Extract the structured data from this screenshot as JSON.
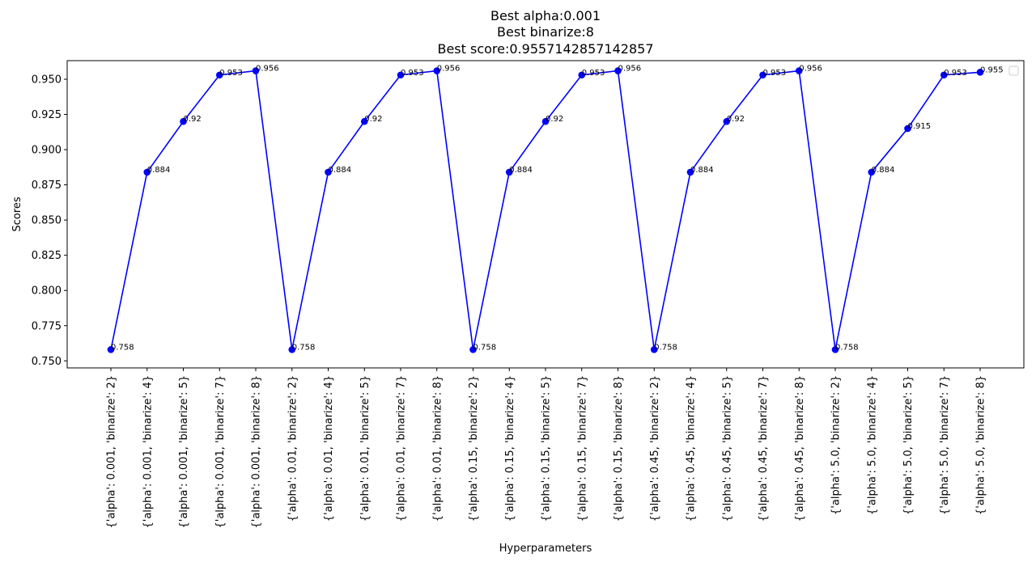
{
  "chart_data": {
    "type": "line",
    "title_lines": [
      "Best alpha:0.001",
      "Best binarize:8",
      "Best score:0.9557142857142857"
    ],
    "xlabel": "Hyperparameters",
    "ylabel": "Scores",
    "ylim": [
      0.745,
      0.9632
    ],
    "yticks": [
      0.75,
      0.775,
      0.8,
      0.825,
      0.85,
      0.875,
      0.9,
      0.925,
      0.95
    ],
    "ytick_labels": [
      "0.750",
      "0.775",
      "0.800",
      "0.825",
      "0.850",
      "0.875",
      "0.900",
      "0.925",
      "0.950"
    ],
    "grid": false,
    "legend": "top-right (empty)",
    "line_color": "#0000ff",
    "categories": [
      "{'alpha': 0.001, 'binarize': 2}",
      "{'alpha': 0.001, 'binarize': 4}",
      "{'alpha': 0.001, 'binarize': 5}",
      "{'alpha': 0.001, 'binarize': 7}",
      "{'alpha': 0.001, 'binarize': 8}",
      "{'alpha': 0.01, 'binarize': 2}",
      "{'alpha': 0.01, 'binarize': 4}",
      "{'alpha': 0.01, 'binarize': 5}",
      "{'alpha': 0.01, 'binarize': 7}",
      "{'alpha': 0.01, 'binarize': 8}",
      "{'alpha': 0.15, 'binarize': 2}",
      "{'alpha': 0.15, 'binarize': 4}",
      "{'alpha': 0.15, 'binarize': 5}",
      "{'alpha': 0.15, 'binarize': 7}",
      "{'alpha': 0.15, 'binarize': 8}",
      "{'alpha': 0.45, 'binarize': 2}",
      "{'alpha': 0.45, 'binarize': 4}",
      "{'alpha': 0.45, 'binarize': 5}",
      "{'alpha': 0.45, 'binarize': 7}",
      "{'alpha': 0.45, 'binarize': 8}",
      "{'alpha': 5.0, 'binarize': 2}",
      "{'alpha': 5.0, 'binarize': 4}",
      "{'alpha': 5.0, 'binarize': 5}",
      "{'alpha': 5.0, 'binarize': 7}",
      "{'alpha': 5.0, 'binarize': 8}"
    ],
    "values": [
      0.758,
      0.884,
      0.92,
      0.953,
      0.956,
      0.758,
      0.884,
      0.92,
      0.953,
      0.956,
      0.758,
      0.884,
      0.92,
      0.953,
      0.956,
      0.758,
      0.884,
      0.92,
      0.953,
      0.956,
      0.758,
      0.884,
      0.915,
      0.953,
      0.955
    ],
    "data_labels": [
      "0.758",
      "0.884",
      "0.92",
      "0.953",
      "0.956",
      "0.758",
      "0.884",
      "0.92",
      "0.953",
      "0.956",
      "0.758",
      "0.884",
      "0.92",
      "0.953",
      "0.956",
      "0.758",
      "0.884",
      "0.92",
      "0.953",
      "0.956",
      "0.758",
      "0.884",
      "0.915",
      "0.953",
      "0.955"
    ]
  }
}
